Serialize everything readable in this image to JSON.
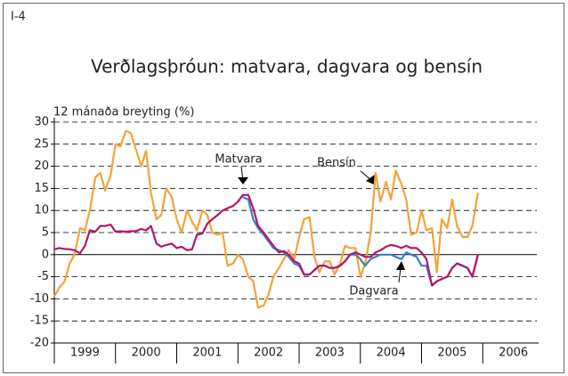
{
  "figure_label": "I-4",
  "chart_data": {
    "type": "line",
    "title": "Verðlagsþróun: matvara, dagvara og bensín",
    "y_label": "12 mánaða breyting (%)",
    "categories": [
      "1999",
      "2000",
      "2001",
      "2002",
      "2003",
      "2004",
      "2005",
      "2006"
    ],
    "x": [
      1999.0,
      1999.08,
      1999.17,
      1999.25,
      1999.33,
      1999.42,
      1999.5,
      1999.58,
      1999.67,
      1999.75,
      1999.83,
      1999.92,
      2000.0,
      2000.08,
      2000.17,
      2000.25,
      2000.33,
      2000.42,
      2000.5,
      2000.58,
      2000.67,
      2000.75,
      2000.83,
      2000.92,
      2001.0,
      2001.08,
      2001.17,
      2001.25,
      2001.33,
      2001.42,
      2001.5,
      2001.58,
      2001.67,
      2001.75,
      2001.83,
      2001.92,
      2002.0,
      2002.08,
      2002.17,
      2002.25,
      2002.33,
      2002.42,
      2002.5,
      2002.58,
      2002.67,
      2002.75,
      2002.83,
      2002.92,
      2003.0,
      2003.08,
      2003.17,
      2003.25,
      2003.33,
      2003.42,
      2003.5,
      2003.58,
      2003.67,
      2003.75,
      2003.83,
      2003.92,
      2004.0,
      2004.08,
      2004.17,
      2004.25,
      2004.33,
      2004.42,
      2004.5,
      2004.58,
      2004.67,
      2004.75,
      2004.83,
      2004.92,
      2005.0,
      2005.08,
      2005.17,
      2005.25,
      2005.33,
      2005.42,
      2005.5,
      2005.58,
      2005.67,
      2005.75,
      2005.83,
      2005.92
    ],
    "series": [
      {
        "name": "Bensín",
        "color": "#f3a23a",
        "values": [
          -9.5,
          -7.5,
          -6,
          -2,
          0,
          6,
          5.5,
          10,
          17.5,
          18.5,
          14.5,
          18,
          25,
          24.5,
          28,
          27.5,
          24,
          20,
          23.5,
          14,
          8,
          9,
          15,
          13,
          8,
          5,
          10,
          7.5,
          5.5,
          10,
          9,
          5,
          4.5,
          5,
          -2.5,
          -2,
          0,
          -1,
          -5,
          -6,
          -12,
          -11.5,
          -9,
          -5,
          -3,
          -1,
          1,
          -1,
          4,
          8,
          8.5,
          -0.5,
          -4,
          -1.5,
          -1.5,
          -4.5,
          -2,
          2,
          1.5,
          1.5,
          -5,
          -2,
          5,
          18.5,
          12,
          16.5,
          12.5,
          19,
          16,
          12.5,
          4.5,
          5,
          10,
          5.5,
          6,
          -4,
          8,
          6,
          12.5,
          6.5,
          4,
          4,
          6.5,
          14
        ]
      },
      {
        "name": "Dagvara",
        "color": "#3b80c3",
        "values": [
          null,
          null,
          null,
          null,
          null,
          null,
          null,
          null,
          null,
          null,
          null,
          null,
          null,
          null,
          null,
          null,
          null,
          null,
          null,
          null,
          null,
          null,
          null,
          null,
          null,
          null,
          null,
          null,
          null,
          null,
          null,
          null,
          null,
          null,
          null,
          null,
          null,
          13,
          12.5,
          8,
          6,
          4.5,
          3,
          1.5,
          1,
          0.5,
          -0.5,
          -2,
          -2.5,
          -4.5,
          -4.5,
          -3.5,
          -2.5,
          -2.5,
          -3,
          -3,
          -2.5,
          -1.5,
          0,
          0,
          -1,
          -2.5,
          -1,
          -0.5,
          0,
          0,
          0,
          -0.5,
          -1,
          0.5,
          0,
          -0.5,
          -2.5,
          -2.5,
          -7,
          -6,
          -5.5,
          -5,
          -3,
          -2,
          -2.5,
          -3,
          -5,
          0
        ]
      },
      {
        "name": "Matvara",
        "color": "#b3156c",
        "values": [
          1.2,
          1.5,
          1.3,
          1.2,
          1,
          0.3,
          2,
          5.5,
          5.2,
          6.5,
          6.5,
          6.8,
          5.2,
          5.3,
          5.2,
          5.3,
          5.3,
          5.8,
          5.5,
          6.5,
          2.5,
          1.8,
          2.2,
          2.5,
          1.5,
          1.8,
          1,
          1.2,
          4.5,
          4.8,
          7,
          8,
          9,
          10,
          10.5,
          11,
          12,
          13.5,
          13.5,
          10.5,
          6.5,
          5,
          3.5,
          2,
          0.5,
          0.8,
          0,
          -1.5,
          -2,
          -4.5,
          -4.5,
          -3.5,
          -2.5,
          -2.5,
          -3,
          -3,
          -2.5,
          -1.5,
          0,
          0.5,
          0,
          -0.5,
          -0.5,
          0.5,
          1,
          1.8,
          2.2,
          2,
          1.5,
          2,
          1.5,
          1.5,
          0.5,
          -1,
          -7,
          -6,
          -5.5,
          -5,
          -3,
          -2,
          -2.5,
          -3,
          -5,
          0
        ]
      }
    ],
    "annotations": [
      "Matvara",
      "Bensín",
      "Dagvara"
    ],
    "xlim": [
      1999,
      2007
    ],
    "ylim": [
      -20,
      30
    ],
    "yticks": [
      -20,
      -15,
      -10,
      -5,
      0,
      5,
      10,
      15,
      20,
      25,
      30
    ],
    "grid": true
  }
}
